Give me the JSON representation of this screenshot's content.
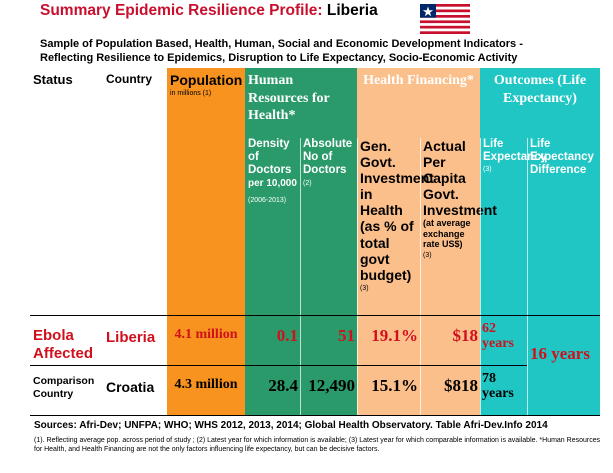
{
  "header": {
    "title": "Summary Epidemic Resilience Profile:",
    "country": "Liberia",
    "subtitle": [
      "Sample of Population Based, Health, Human, Social and Economic Development Indicators -",
      "Reflecting Resilience to Epidemics, Disruption to Life Expectancy, Socio-Economic Activity"
    ]
  },
  "table": {
    "columns": [
      "Status",
      "Country",
      "Population",
      "Human Resources for Health*",
      "Health Financing*",
      "Outcomes (Life Expectancy)"
    ],
    "population_note": "in millions (1)",
    "subcolumns": [
      {
        "label": "Density of Doctors",
        "detail": "per 10,000",
        "note": "(2006-2013)"
      },
      {
        "label": "Absolute No of Doctors",
        "note": "(2)"
      },
      {
        "label": "Gen. Govt. Investment in Health (as % of total govt budget)",
        "note": "(3)"
      },
      {
        "label": "Actual Per Capita Govt. Investment",
        "detail": "(at average exchange rate US$)",
        "note": "(3)"
      },
      {
        "label": "Life Expectancy",
        "note": "(3)"
      },
      {
        "label": "Life Expectancy Difference"
      }
    ],
    "rows": [
      {
        "status": "Ebola Affected",
        "country": "Liberia",
        "cells": [
          "4.1 million",
          "0.1",
          "51",
          "19.1%",
          "$18",
          "62 years"
        ]
      },
      {
        "status": "Comparison Country",
        "country": "Croatia",
        "cells": [
          "4.3 million",
          "28.4",
          "12,490",
          "15.1%",
          "$818",
          "78 years"
        ]
      }
    ],
    "difference": "16 years"
  },
  "footer": {
    "sources": "Sources: Afri-Dev; UNFPA; WHO; WHS 2012, 2013, 2014; Global Health Observatory. Table Afri-Dev.Info 2014",
    "notes": "(1). Reflecting average pop. across period of study ; (2) Latest year for which information is available; (3) Latest year for which comparable information is available. *Human Resources for Health, and Health Financing are not the only factors influencing life expectancy, but can be decisive factors."
  }
}
